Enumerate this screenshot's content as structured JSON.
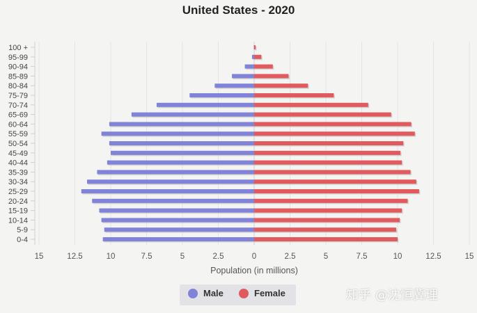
{
  "title": "United States - 2020",
  "chart_data": {
    "type": "bar",
    "orientation": "horizontal",
    "title": "United States - 2020",
    "xlabel": "Population (in millions)",
    "ylabel": "",
    "xlim": [
      -15,
      15
    ],
    "x_ticks": [
      "15",
      "12.5",
      "10",
      "7.5",
      "5",
      "2.5",
      "0",
      "2.5",
      "5",
      "7.5",
      "10",
      "12.5",
      "15"
    ],
    "categories": [
      "100 +",
      "95-99",
      "90-94",
      "85-89",
      "80-84",
      "75-79",
      "70-74",
      "65-69",
      "60-64",
      "55-59",
      "50-54",
      "45-49",
      "40-44",
      "35-39",
      "30-34",
      "25-29",
      "20-24",
      "15-19",
      "10-14",
      "5-9",
      "0-4"
    ],
    "series": [
      {
        "name": "Male",
        "color": "#8083d8",
        "values": [
          0.02,
          0.15,
          0.65,
          1.55,
          2.75,
          4.5,
          6.8,
          8.55,
          10.1,
          10.65,
          10.1,
          10.0,
          10.25,
          10.95,
          11.65,
          12.05,
          11.3,
          10.8,
          10.65,
          10.45,
          10.55
        ]
      },
      {
        "name": "Female",
        "color": "#e05a5e",
        "values": [
          0.1,
          0.5,
          1.3,
          2.4,
          3.75,
          5.55,
          7.95,
          9.55,
          10.95,
          11.2,
          10.4,
          10.2,
          10.3,
          10.9,
          11.3,
          11.5,
          10.7,
          10.3,
          10.15,
          9.9,
          10.0
        ]
      }
    ],
    "grid": true,
    "legend_position": "bottom"
  },
  "legend": {
    "male_label": "Male",
    "female_label": "Female",
    "male_color": "#8083d8",
    "female_color": "#e05a5e"
  },
  "watermark": "知乎 @沈恒冀理"
}
